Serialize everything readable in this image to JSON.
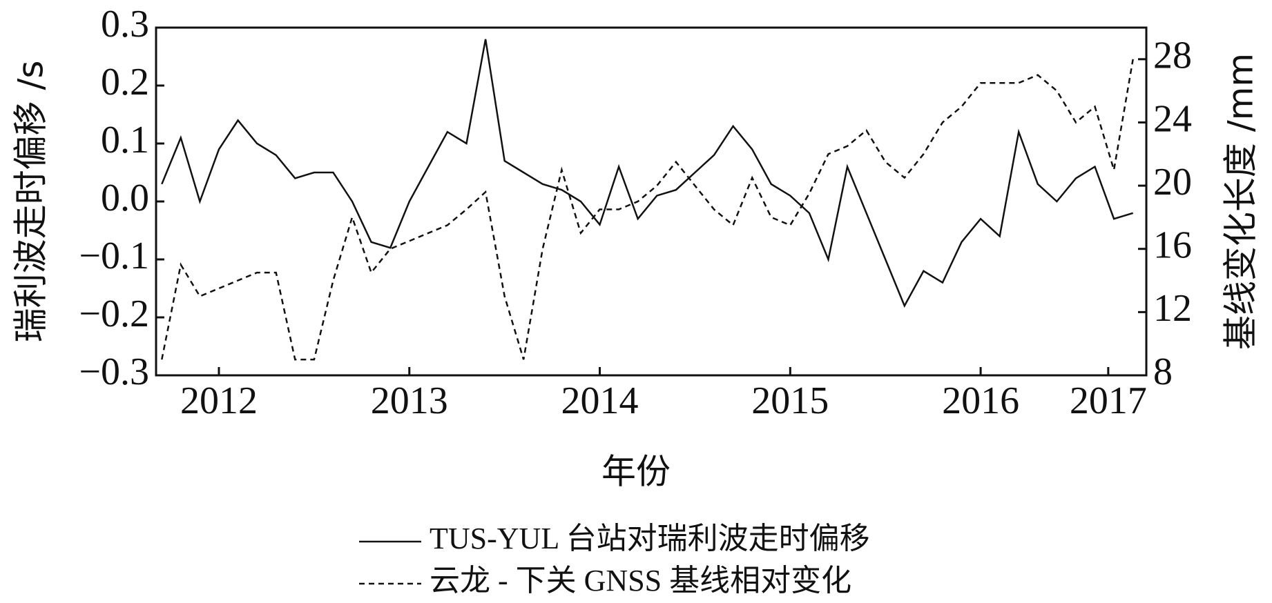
{
  "chart_data": {
    "type": "line",
    "xlabel": "年份",
    "ylabel": "瑞利波走时偏移 /s",
    "y2label": "基线变化长度 /mm",
    "x": [
      2012.2,
      2012.3,
      2012.4,
      2012.5,
      2012.6,
      2012.7,
      2012.8,
      2012.9,
      2013.0,
      2013.1,
      2013.2,
      2013.3,
      2013.4,
      2013.5,
      2013.6,
      2013.7,
      2013.8,
      2013.9,
      2014.0,
      2014.1,
      2014.2,
      2014.3,
      2014.4,
      2014.5,
      2014.6,
      2014.7,
      2014.8,
      2014.9,
      2015.0,
      2015.1,
      2015.2,
      2015.3,
      2015.4,
      2015.5,
      2015.6,
      2015.7,
      2015.8,
      2015.9,
      2016.0,
      2016.1,
      2016.2,
      2016.3,
      2016.4,
      2016.5,
      2016.6,
      2016.7,
      2016.8,
      2016.9,
      2017.0,
      2017.1,
      2017.2,
      2017.3
    ],
    "series": [
      {
        "name": "TUS-YUL 台站对瑞利波走时偏移",
        "color": "#111111",
        "dash": "solid",
        "axis": "y",
        "values": [
          0.03,
          0.11,
          0.0,
          0.09,
          0.14,
          0.1,
          0.08,
          0.04,
          0.05,
          0.05,
          0.0,
          -0.07,
          -0.08,
          0.0,
          0.06,
          0.12,
          0.1,
          0.28,
          0.07,
          0.05,
          0.03,
          0.02,
          0.0,
          -0.04,
          0.06,
          -0.03,
          0.01,
          0.02,
          0.05,
          0.08,
          0.13,
          0.09,
          0.03,
          0.01,
          -0.02,
          -0.1,
          0.06,
          -0.02,
          -0.1,
          -0.18,
          -0.12,
          -0.14,
          -0.07,
          -0.03,
          -0.06,
          0.12,
          0.03,
          0.0,
          0.04,
          0.06,
          -0.03,
          -0.02
        ]
      },
      {
        "name": "云龙 - 下关 GNSS 基线相对变化",
        "color": "#111111",
        "dash": "dashed",
        "axis": "y2",
        "values": [
          9,
          15,
          13,
          13.5,
          14,
          14.5,
          14.5,
          9,
          9,
          14,
          18,
          14.5,
          16,
          16.5,
          17,
          17.5,
          18.5,
          19.6,
          13,
          9,
          16,
          21,
          17,
          18.5,
          18.5,
          19,
          20,
          21.5,
          20,
          18.5,
          17.5,
          20.5,
          18,
          17.5,
          19.5,
          22,
          22.5,
          23.5,
          21.5,
          20.5,
          22,
          24,
          25,
          26.5,
          26.5,
          26.5,
          27,
          26,
          24,
          25,
          21,
          28
        ]
      }
    ],
    "xlim": [
      2012.17,
      2017.37
    ],
    "xticks": [
      {
        "value": 2012.5,
        "label": "2012"
      },
      {
        "value": 2013.5,
        "label": "2013"
      },
      {
        "value": 2014.5,
        "label": "2014"
      },
      {
        "value": 2015.5,
        "label": "2015"
      },
      {
        "value": 2016.5,
        "label": "2016"
      },
      {
        "value": 2017.17,
        "label": "2017"
      }
    ],
    "ylim": [
      -0.3,
      0.3
    ],
    "yticks": [
      {
        "value": -0.3,
        "label": "−0.3"
      },
      {
        "value": -0.2,
        "label": "−0.2"
      },
      {
        "value": -0.1,
        "label": "−0.1"
      },
      {
        "value": 0,
        "label": "0.0"
      },
      0.1,
      0.2,
      0.3
    ],
    "y2lim": [
      8,
      30
    ],
    "y2ticks": [
      8,
      12,
      16,
      20,
      24,
      28
    ],
    "grid": false
  }
}
